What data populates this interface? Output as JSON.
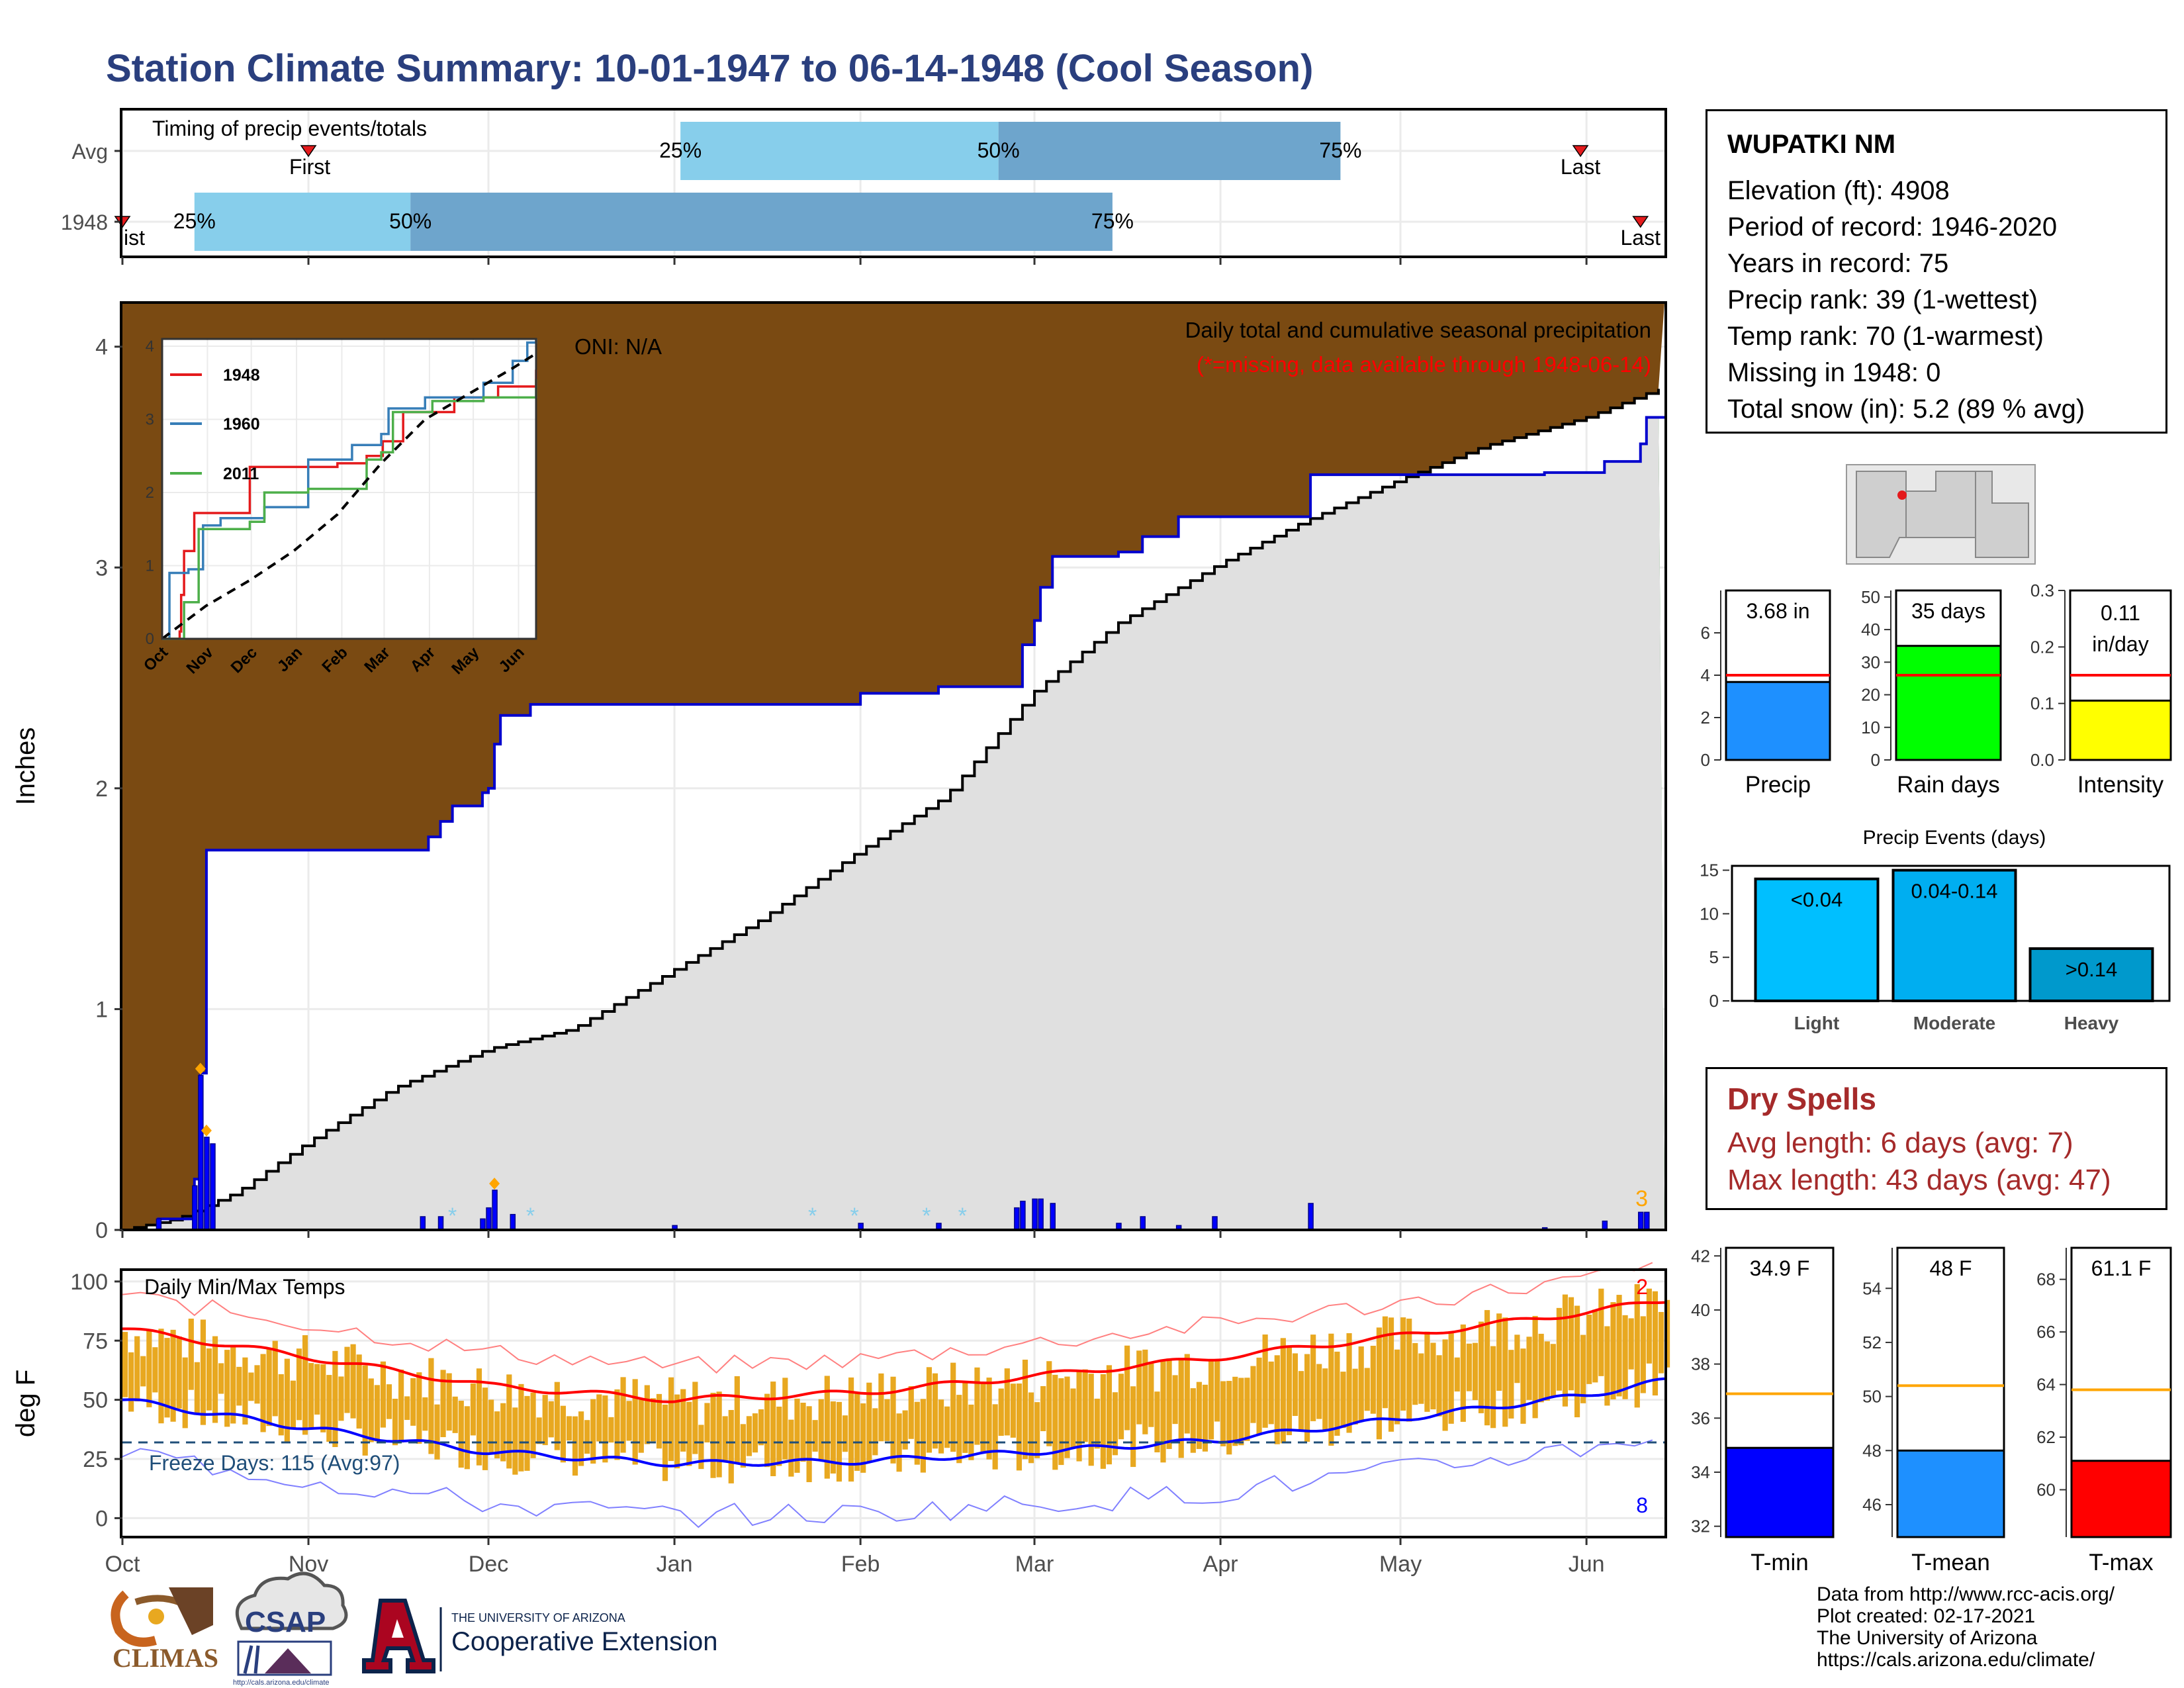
{
  "header": {
    "title": "Station Climate Summary: 10-01-1947 to 06-14-1948 (Cool Season)"
  },
  "station": {
    "name": "WUPATKI NM",
    "lines": [
      "Elevation (ft): 4908",
      "Period of record: 1946-2020",
      "Years in record: 75",
      "Precip rank: 39 (1-wettest)",
      "Temp rank: 70 (1-warmest)",
      "Missing in 1948: 0",
      "Total snow (in): 5.2 (89 % avg)"
    ]
  },
  "dry_spells": {
    "title": "Dry Spells",
    "avg_length": "Avg length: 6 days (avg: 7)",
    "max_length": "Max length: 43 days (avg: 47)"
  },
  "credits": [
    "Data from http://www.rcc-acis.org/",
    "Plot created: 02-17-2021",
    "The University of Arizona",
    "https://cals.arizona.edu/climate/"
  ],
  "logos": {
    "climas": "CLIMAS",
    "csap": "CSAP",
    "csap_url": "http://cals.arizona.edu/climate",
    "ua_small": "THE UNIVERSITY OF ARIZONA",
    "ua_big": "Cooperative Extension"
  },
  "chart_data": [
    {
      "id": "timing",
      "type": "bar",
      "title": "Timing of precip events/totals",
      "date_axis": {
        "start": "1947-10-01",
        "end": "1948-06-14",
        "tick_labels": [
          "Oct",
          "Nov",
          "Dec",
          "Jan",
          "Feb",
          "Mar",
          "Apr",
          "May",
          "Jun"
        ]
      },
      "rows": [
        {
          "label": "Avg",
          "first": "1947-11-01",
          "p25": "1948-01-02",
          "p50": "1948-02-24",
          "p75": "1948-04-21",
          "last": "1948-05-31",
          "labels": {
            "first": "First",
            "p25": "25%",
            "p50": "50%",
            "p75": "75%",
            "last": "Last"
          }
        },
        {
          "label": "1948",
          "first": "1947-10-01",
          "p25": "1947-10-13",
          "p50": "1947-11-18",
          "p75": "1948-03-14",
          "last": "1948-06-10",
          "labels": {
            "first": "ist",
            "p25": "25%",
            "p50": "50%",
            "p75": "75%",
            "last": "Last"
          }
        }
      ],
      "colors": {
        "early": "#87ceeb",
        "late": "#6ea5cc",
        "marker": "#e41a1c"
      }
    },
    {
      "id": "precip",
      "type": "area",
      "title": "Daily total and cumulative seasonal precipitation",
      "subtitle": "(*=missing, data available through 1948-06-14)",
      "oni": "ONI: N/A",
      "ylabel": "Inches",
      "ylim": [
        0,
        4.2
      ],
      "yticks": [
        0,
        1,
        2,
        3,
        4
      ],
      "extreme_count": "3",
      "cumulative_1948": [
        [
          "1947-10-01",
          0.0
        ],
        [
          "1947-10-07",
          0.05
        ],
        [
          "1947-10-13",
          0.23
        ],
        [
          "1947-10-14",
          0.71
        ],
        [
          "1947-10-15",
          1.72
        ],
        [
          "1947-11-20",
          1.72
        ],
        [
          "1947-11-21",
          1.78
        ],
        [
          "1947-11-23",
          1.85
        ],
        [
          "1947-11-25",
          1.92
        ],
        [
          "1947-11-30",
          1.98
        ],
        [
          "1947-12-01",
          2.0
        ],
        [
          "1947-12-02",
          2.2
        ],
        [
          "1947-12-03",
          2.33
        ],
        [
          "1947-12-08",
          2.38
        ],
        [
          "1948-01-31",
          2.38
        ],
        [
          "1948-02-01",
          2.43
        ],
        [
          "1948-02-13",
          2.43
        ],
        [
          "1948-02-14",
          2.46
        ],
        [
          "1948-02-27",
          2.46
        ],
        [
          "1948-02-28",
          2.65
        ],
        [
          "1948-03-01",
          2.76
        ],
        [
          "1948-03-02",
          2.91
        ],
        [
          "1948-03-04",
          3.05
        ],
        [
          "1948-03-14",
          3.05
        ],
        [
          "1948-03-15",
          3.07
        ],
        [
          "1948-03-19",
          3.14
        ],
        [
          "1948-03-24",
          3.14
        ],
        [
          "1948-03-25",
          3.23
        ],
        [
          "1948-04-15",
          3.23
        ],
        [
          "1948-04-16",
          3.42
        ],
        [
          "1948-05-24",
          3.42
        ],
        [
          "1948-05-25",
          3.43
        ],
        [
          "1948-06-04",
          3.48
        ],
        [
          "1948-06-10",
          3.56
        ],
        [
          "1948-06-11",
          3.68
        ],
        [
          "1948-06-14",
          3.68
        ]
      ],
      "cumulative_avg": [
        [
          "1947-10-01",
          0.0
        ],
        [
          "1947-10-10",
          0.05
        ],
        [
          "1947-10-20",
          0.17
        ],
        [
          "1947-11-01",
          0.4
        ],
        [
          "1947-11-15",
          0.64
        ],
        [
          "1947-12-01",
          0.82
        ],
        [
          "1947-12-15",
          0.91
        ],
        [
          "1948-01-01",
          1.18
        ],
        [
          "1948-01-15",
          1.4
        ],
        [
          "1948-02-01",
          1.72
        ],
        [
          "1948-02-15",
          1.96
        ],
        [
          "1948-03-01",
          2.44
        ],
        [
          "1948-03-15",
          2.75
        ],
        [
          "1948-04-01",
          3.02
        ],
        [
          "1948-04-15",
          3.21
        ],
        [
          "1948-05-01",
          3.4
        ],
        [
          "1948-05-15",
          3.55
        ],
        [
          "1948-06-01",
          3.68
        ],
        [
          "1948-06-14",
          3.82
        ]
      ],
      "daily_1948": [
        [
          "1947-10-07",
          0.05
        ],
        [
          "1947-10-13",
          0.2
        ],
        [
          "1947-10-14",
          0.7
        ],
        [
          "1947-10-15",
          0.42
        ],
        [
          "1947-10-16",
          0.39
        ],
        [
          "1947-11-20",
          0.06
        ],
        [
          "1947-11-23",
          0.06
        ],
        [
          "1947-11-30",
          0.05
        ],
        [
          "1947-12-01",
          0.1
        ],
        [
          "1947-12-02",
          0.18
        ],
        [
          "1947-12-05",
          0.07
        ],
        [
          "1948-01-01",
          0.02
        ],
        [
          "1948-02-01",
          0.03
        ],
        [
          "1948-02-14",
          0.03
        ],
        [
          "1948-02-27",
          0.1
        ],
        [
          "1948-02-28",
          0.13
        ],
        [
          "1948-03-01",
          0.14
        ],
        [
          "1948-03-02",
          0.14
        ],
        [
          "1948-03-04",
          0.12
        ],
        [
          "1948-03-15",
          0.03
        ],
        [
          "1948-03-19",
          0.06
        ],
        [
          "1948-03-25",
          0.02
        ],
        [
          "1948-03-31",
          0.06
        ],
        [
          "1948-04-16",
          0.12
        ],
        [
          "1948-05-25",
          0.01
        ],
        [
          "1948-06-04",
          0.04
        ],
        [
          "1948-06-10",
          0.08
        ],
        [
          "1948-06-11",
          0.08
        ]
      ],
      "extreme_days": [
        "1947-10-14",
        "1947-10-15",
        "1947-12-02"
      ],
      "missing_days": [
        "1947-11-25",
        "1947-12-08",
        "1948-01-24",
        "1948-01-31",
        "1948-02-12",
        "1948-02-18"
      ],
      "colors": {
        "above": "#008000",
        "below": "#7a4a12",
        "avg_fill": "#e0e0e0",
        "line": "#0000cd",
        "bar": "#0000ff",
        "extreme": "#ffa500",
        "missing": "#87ceeb"
      },
      "inset": {
        "type": "line",
        "ylim": [
          0,
          4.1
        ],
        "yticks": [
          0,
          1,
          2,
          3,
          4
        ],
        "xticks": [
          "Oct",
          "Nov",
          "Dec",
          "Jan",
          "Feb",
          "Mar",
          "Apr",
          "May",
          "Jun"
        ],
        "series": [
          {
            "name": "1948",
            "color": "#e41a1c",
            "points": [
              [
                0,
                0
              ],
              [
                12,
                0.1
              ],
              [
                13,
                0.6
              ],
              [
                15,
                1.2
              ],
              [
                22,
                1.72
              ],
              [
                45,
                1.72
              ],
              [
                60,
                2.35
              ],
              [
                120,
                2.4
              ],
              [
                140,
                2.5
              ],
              [
                151,
                2.7
              ],
              [
                165,
                3.1
              ],
              [
                200,
                3.3
              ],
              [
                230,
                3.45
              ],
              [
                256,
                3.68
              ]
            ]
          },
          {
            "name": "1960",
            "color": "#377eb8",
            "points": [
              [
                0,
                0
              ],
              [
                5,
                0.9
              ],
              [
                18,
                0.95
              ],
              [
                28,
                1.55
              ],
              [
                40,
                1.65
              ],
              [
                70,
                1.8
              ],
              [
                100,
                2.45
              ],
              [
                130,
                2.65
              ],
              [
                150,
                2.8
              ],
              [
                155,
                3.15
              ],
              [
                180,
                3.3
              ],
              [
                220,
                3.5
              ],
              [
                240,
                3.8
              ],
              [
                250,
                4.05
              ],
              [
                256,
                4.1
              ]
            ]
          },
          {
            "name": "2011",
            "color": "#4daf4a",
            "points": [
              [
                0,
                0
              ],
              [
                15,
                0.5
              ],
              [
                25,
                1.5
              ],
              [
                60,
                1.6
              ],
              [
                70,
                2.0
              ],
              [
                100,
                2.05
              ],
              [
                140,
                2.45
              ],
              [
                150,
                2.55
              ],
              [
                158,
                3.1
              ],
              [
                185,
                3.25
              ],
              [
                220,
                3.3
              ],
              [
                256,
                3.55
              ]
            ]
          },
          {
            "name": "avg",
            "dash": true,
            "color": "#000000",
            "points": [
              [
                0,
                0
              ],
              [
                30,
                0.45
              ],
              [
                60,
                0.8
              ],
              [
                90,
                1.2
              ],
              [
                120,
                1.7
              ],
              [
                150,
                2.4
              ],
              [
                180,
                3.0
              ],
              [
                210,
                3.35
              ],
              [
                240,
                3.7
              ],
              [
                256,
                3.9
              ]
            ]
          }
        ]
      }
    },
    {
      "id": "temps",
      "type": "bar",
      "title": "Daily Min/Max Temps",
      "ylabel": "deg F",
      "ylim": [
        -8,
        105
      ],
      "yticks": [
        0,
        25,
        50,
        75,
        100
      ],
      "freeze_label": "Freeze Days: 115 (Avg:97)",
      "freeze_line": 32,
      "record_high_count": "2",
      "record_low_count": "8",
      "normal_max": [
        [
          "1947-10-01",
          80
        ],
        [
          "1947-11-01",
          68
        ],
        [
          "1947-12-01",
          56
        ],
        [
          "1948-01-01",
          50
        ],
        [
          "1948-02-01",
          53
        ],
        [
          "1948-03-01",
          60
        ],
        [
          "1948-04-01",
          68
        ],
        [
          "1948-05-01",
          77
        ],
        [
          "1948-06-01",
          87
        ],
        [
          "1948-06-14",
          92
        ]
      ],
      "normal_min": [
        [
          "1947-10-01",
          50
        ],
        [
          "1947-11-01",
          38
        ],
        [
          "1947-12-01",
          28
        ],
        [
          "1948-01-01",
          23
        ],
        [
          "1948-02-01",
          24
        ],
        [
          "1948-03-01",
          28
        ],
        [
          "1948-04-01",
          33
        ],
        [
          "1948-05-01",
          42
        ],
        [
          "1948-06-01",
          52
        ],
        [
          "1948-06-14",
          58
        ]
      ],
      "colors": {
        "bar": "#e8a820",
        "normal_max": "#ff0000",
        "normal_min": "#0000ff",
        "rec_max": "#ff8080",
        "rec_min": "#8080ff",
        "freeze": "#1f4e79"
      },
      "xticks": [
        "Oct",
        "Nov",
        "Dec",
        "Jan",
        "Feb",
        "Mar",
        "Apr",
        "May",
        "Jun"
      ]
    },
    {
      "id": "mini-precip",
      "type": "bar",
      "panels": [
        {
          "label": "Precip",
          "value_text": "3.68 in",
          "value": 3.68,
          "avg": 4.0,
          "ylim": [
            0,
            8
          ],
          "yticks": [
            0,
            2,
            4,
            6
          ],
          "color": "#1e90ff"
        },
        {
          "label": "Rain days",
          "value_text": "35 days",
          "value": 35,
          "avg": 26,
          "ylim": [
            0,
            52
          ],
          "yticks": [
            0,
            10,
            20,
            30,
            40,
            50
          ],
          "color": "#00ff00"
        },
        {
          "label": "Intensity",
          "value_text": "0.11 in/day",
          "value": 0.105,
          "avg": 0.15,
          "ylim": [
            0,
            0.3
          ],
          "yticks": [
            0.0,
            0.1,
            0.2,
            0.3
          ],
          "color": "#ffff00"
        }
      ]
    },
    {
      "id": "precip-events",
      "type": "bar",
      "title": "Precip Events (days)",
      "categories": [
        "Light",
        "Moderate",
        "Heavy"
      ],
      "values": [
        14,
        15,
        6
      ],
      "bar_labels": [
        "<0.04",
        "0.04-0.14",
        ">0.14"
      ],
      "ylim": [
        0,
        15.5
      ],
      "yticks": [
        0,
        5,
        10,
        15
      ],
      "colors": [
        "#00bfff",
        "#00aef0",
        "#0099cc"
      ]
    },
    {
      "id": "mini-temp",
      "type": "bar",
      "panels": [
        {
          "label": "T-min",
          "value_text": "34.9 F",
          "value": 34.9,
          "avg": 36.9,
          "ylim": [
            31.6,
            42.3
          ],
          "yticks": [
            32,
            34,
            36,
            38,
            40,
            42
          ],
          "color": "#0000ff"
        },
        {
          "label": "T-mean",
          "value_text": "48 F",
          "value": 48.0,
          "avg": 50.4,
          "ylim": [
            44.8,
            55.5
          ],
          "yticks": [
            46,
            48,
            50,
            52,
            54
          ],
          "color": "#1e90ff"
        },
        {
          "label": "T-max",
          "value_text": "61.1 F",
          "value": 61.1,
          "avg": 63.8,
          "ylim": [
            58.2,
            69.2
          ],
          "yticks": [
            60,
            62,
            64,
            66,
            68
          ],
          "color": "#ff0000"
        }
      ]
    }
  ]
}
